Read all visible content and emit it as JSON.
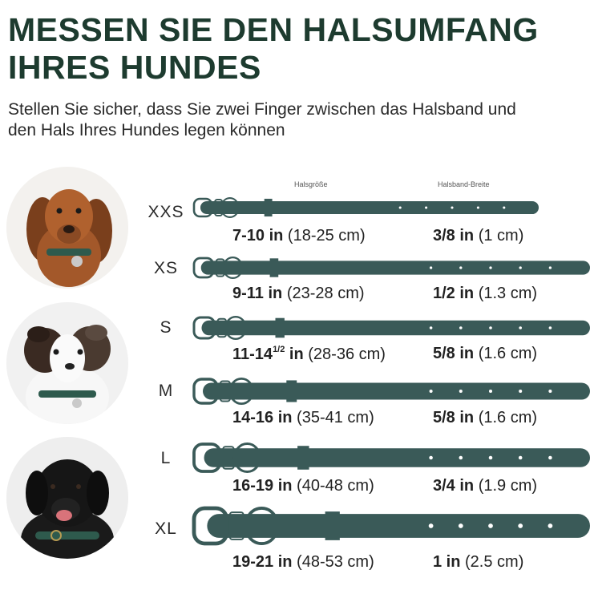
{
  "header": {
    "title_line1": "MESSEN SIE DEN HALSUMFANG",
    "title_line2": "IHRES HUNDES",
    "subtitle_line1": "Stellen Sie sicher, dass Sie zwei Finger zwischen das Halsband und",
    "subtitle_line2": "den Hals Ihres Hundes legen können"
  },
  "columns": {
    "neck_size": "Halsgröße",
    "collar_width": "Halsband-Breite"
  },
  "colors": {
    "collar": "#3a5a58",
    "title": "#1d3b2f",
    "hole": "#ffffff"
  },
  "dogs": [
    {
      "icon": "dachshund-photo"
    },
    {
      "icon": "australian-shepherd-photo"
    },
    {
      "icon": "labrador-photo"
    }
  ],
  "sizes": [
    {
      "label": "XXS",
      "circ_in": "7-10 in",
      "circ_cm": "(18-25 cm)",
      "width_in": "3/8 in",
      "width_cm": "(1 cm)"
    },
    {
      "label": "XS",
      "circ_in": "9-11 in",
      "circ_cm": "(23-28 cm)",
      "width_in": "1/2 in",
      "width_cm": "(1.3 cm)"
    },
    {
      "label": "S",
      "circ_in": "11-14",
      "circ_sup": "1/2",
      "circ_in_unit": "in",
      "circ_cm": "(28-36 cm)",
      "width_in": "5/8 in",
      "width_cm": "(1.6 cm)"
    },
    {
      "label": "M",
      "circ_in": "14-16 in",
      "circ_cm": "(35-41 cm)",
      "width_in": "5/8 in",
      "width_cm": "(1.6 cm)"
    },
    {
      "label": "L",
      "circ_in": "16-19 in",
      "circ_cm": "(40-48 cm)",
      "width_in": "3/4 in",
      "width_cm": "(1.9 cm)"
    },
    {
      "label": "XL",
      "circ_in": "19-21 in",
      "circ_cm": "(48-53 cm)",
      "width_in": "1 in",
      "width_cm": "(2.5 cm)"
    }
  ]
}
